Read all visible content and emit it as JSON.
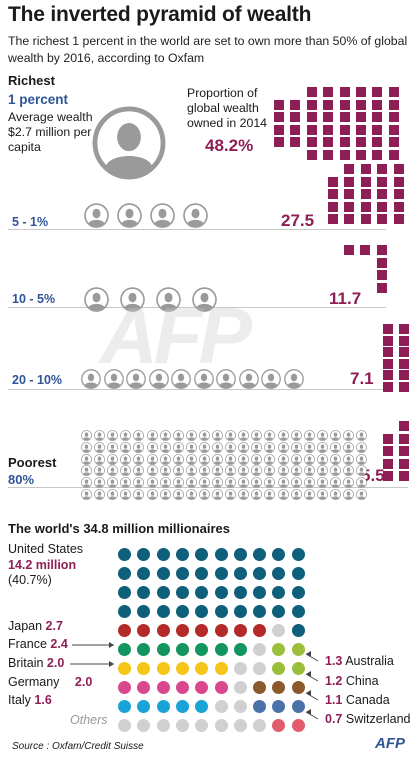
{
  "header": {
    "title": "The inverted pyramid of wealth",
    "subtitle": "The richest 1 percent in the world are set to own more than 50% of global wealth by 2016, according to Oxfam"
  },
  "pyramid": {
    "richest_label": "Richest",
    "poorest_label": "Poorest",
    "proportion_caption": "Proportion of global wealth owned in 2014",
    "top_avg": "Average wealth $2.7 million per capita",
    "tiers": [
      {
        "label": "1 percent",
        "value": "48.2%"
      },
      {
        "label": "5 - 1%",
        "value": "27.5"
      },
      {
        "label": "10 - 5%",
        "value": "11.7"
      },
      {
        "label": "20 - 10%",
        "value": "7.1"
      },
      {
        "label": "80%",
        "value": "5.5"
      }
    ]
  },
  "millionaires": {
    "title": "The world's 34.8 million millionaires",
    "us_label": "United States",
    "us_value": "14.2 million",
    "us_share": "(40.7%)",
    "others_label": "Others"
  },
  "footer": {
    "source": "Source : Oxfam/Credit Suisse",
    "logo": "AFP"
  },
  "colors": {
    "plum": "#8e1f56",
    "blue": "#2f5597",
    "usa": "#0d5f7a",
    "japan": "#b42a28",
    "france": "#12955e",
    "britain": "#f5c518",
    "germany": "#d9478c",
    "italy": "#1aa3d6",
    "australia": "#9bbf3a",
    "china": "#8a5a2e",
    "canada": "#4a72a8",
    "switzerland": "#e25c6e",
    "others": "#d0d0d0"
  },
  "chart_data": [
    {
      "type": "bar",
      "title": "The inverted pyramid of wealth",
      "ylabel": "Proportion of global wealth owned in 2014",
      "categories": [
        "1 percent",
        "5 - 1%",
        "10 - 5%",
        "20 - 10%",
        "80%"
      ],
      "values": [
        48.2,
        27.5,
        11.7,
        7.1,
        5.5
      ]
    },
    {
      "type": "bar",
      "title": "The world's 34.8 million millionaires",
      "categories": [
        "United States",
        "Japan",
        "France",
        "Britain",
        "Germany",
        "Italy",
        "Australia",
        "China",
        "Canada",
        "Switzerland",
        "Others"
      ],
      "values": [
        14.2,
        2.7,
        2.4,
        2.0,
        2.0,
        1.6,
        1.3,
        1.2,
        1.1,
        0.7,
        null
      ],
      "value_labels": [
        "14.2 million",
        "2.7",
        "2.4",
        "2.0",
        "2.0",
        "1.6",
        "1.3",
        "1.2",
        "1.1",
        "0.7",
        ""
      ],
      "unit": "million"
    }
  ]
}
